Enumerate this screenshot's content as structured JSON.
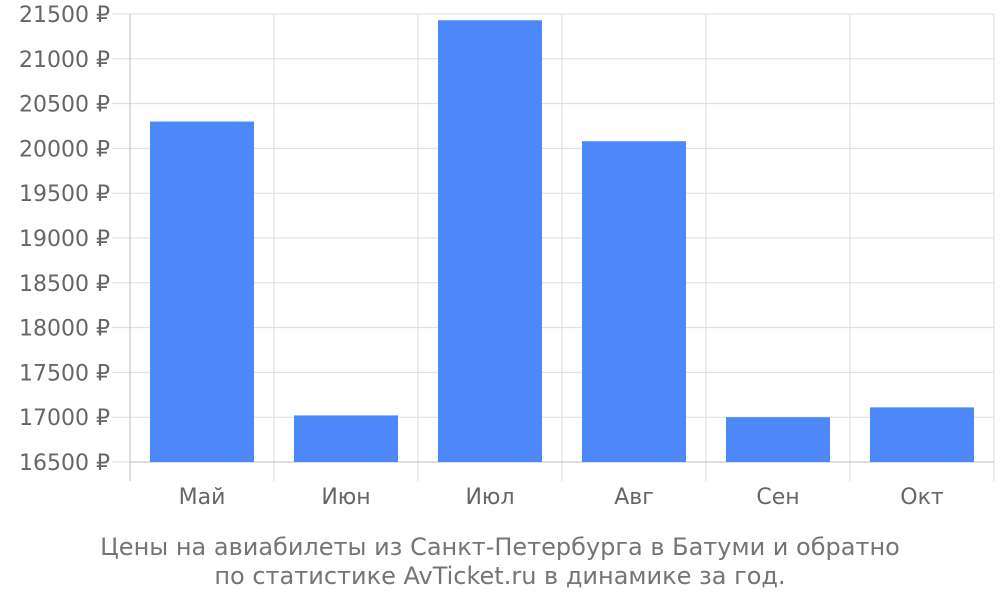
{
  "caption": {
    "line1": "Цены на авиабилеты из Санкт-Петербурга в Батуми и обратно",
    "line2": "по статистике AvTicket.ru в динамике за год."
  },
  "colors": {
    "bar": "#4d88f9",
    "grid": "#dddddd",
    "axis": "#bdbdbd",
    "text": "#666666"
  },
  "chart_data": {
    "type": "bar",
    "categories": [
      "Май",
      "Июн",
      "Июл",
      "Авг",
      "Сен",
      "Окт"
    ],
    "values": [
      20300,
      17020,
      21430,
      20080,
      17000,
      17110
    ],
    "ylim": [
      16500,
      21500
    ],
    "y_ticks": [
      16500,
      17000,
      17500,
      18000,
      18500,
      19000,
      19500,
      20000,
      20500,
      21000,
      21500
    ],
    "y_tick_suffix": " ₽",
    "grid": true
  }
}
